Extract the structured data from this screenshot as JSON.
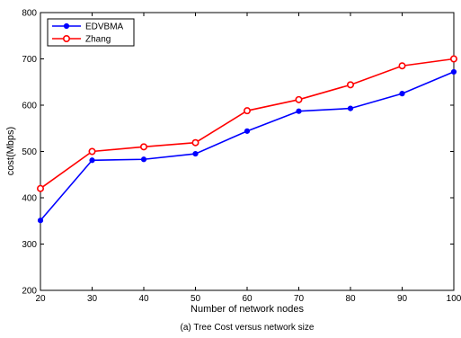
{
  "chart_data": {
    "type": "line",
    "title": "",
    "caption": "(a) Tree Cost versus network size",
    "xlabel": "Number of network nodes",
    "ylabel": "cost(Mbps)",
    "xlim": [
      20,
      100
    ],
    "ylim": [
      200,
      800
    ],
    "x": [
      20,
      30,
      40,
      50,
      60,
      70,
      80,
      90,
      100
    ],
    "xticks": [
      "20",
      "30",
      "40",
      "50",
      "60",
      "70",
      "80",
      "90",
      "100"
    ],
    "yticks": [
      "200",
      "300",
      "400",
      "500",
      "600",
      "700",
      "800"
    ],
    "grid": false,
    "legend_position": "top-left",
    "series": [
      {
        "name": "EDVBMA",
        "color": "#0000ff",
        "marker": "filled-circle",
        "values": [
          351,
          481,
          483,
          495,
          544,
          587,
          593,
          625,
          672
        ]
      },
      {
        "name": "Zhang",
        "color": "#ff0000",
        "marker": "open-circle",
        "values": [
          420,
          500,
          510,
          519,
          588,
          612,
          644,
          685,
          700
        ]
      }
    ]
  }
}
